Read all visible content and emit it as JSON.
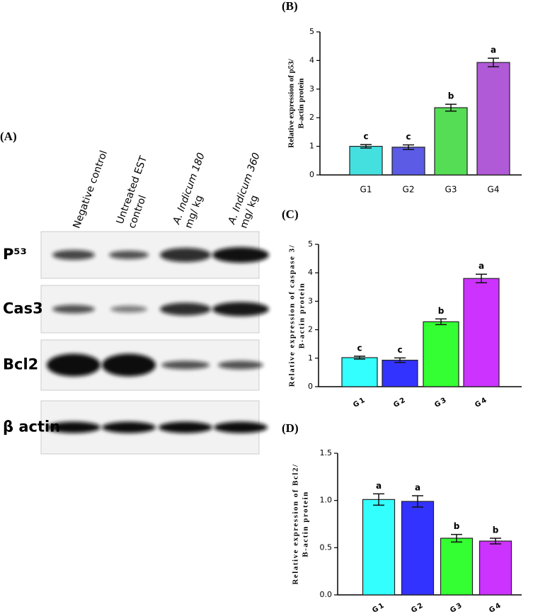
{
  "blot": {
    "panel_label": "(A)",
    "lanes": [
      [
        "Negative control"
      ],
      [
        "Untreated EST",
        "control"
      ],
      [
        "A. Indicum 180",
        "mg/ kg"
      ],
      [
        "A. Indicum 360",
        "mg/ kg"
      ]
    ],
    "rows": [
      "P⁵³",
      "Cas3",
      "Bcl2",
      "β actin"
    ]
  },
  "chart_data": [
    {
      "type": "bar",
      "panel_label": "(B)",
      "ylabel": [
        "Relative expression of p53/",
        "B-actin protein"
      ],
      "categories": [
        "G1",
        "G2",
        "G3",
        "G4"
      ],
      "values": [
        1.0,
        0.97,
        2.35,
        3.93
      ],
      "errors": [
        0.06,
        0.08,
        0.12,
        0.15
      ],
      "annotations": [
        "c",
        "c",
        "b",
        "a"
      ],
      "colors": [
        "#44e0e0",
        "#5b5be6",
        "#55dd55",
        "#b05ad8"
      ],
      "ylim": [
        0,
        5
      ],
      "yticks": [
        0,
        1,
        2,
        3,
        4,
        5
      ]
    },
    {
      "type": "bar",
      "panel_label": "(C)",
      "ylabel": [
        "Relative expression of caspase 3/",
        "B-actin protein"
      ],
      "categories": [
        "G1",
        "G2",
        "G3",
        "G4"
      ],
      "values": [
        1.02,
        0.93,
        2.28,
        3.8
      ],
      "errors": [
        0.05,
        0.08,
        0.1,
        0.15
      ],
      "annotations": [
        "c",
        "c",
        "b",
        "a"
      ],
      "colors": [
        "#33ffff",
        "#3333ff",
        "#33ff33",
        "#cc33ff"
      ],
      "ylim": [
        0,
        5
      ],
      "yticks": [
        0,
        1,
        2,
        3,
        4,
        5
      ]
    },
    {
      "type": "bar",
      "panel_label": "(D)",
      "ylabel": [
        "Relative expression of Bcl2/",
        "B-actin protein"
      ],
      "categories": [
        "G1",
        "G2",
        "G3",
        "G4"
      ],
      "values": [
        1.01,
        0.99,
        0.6,
        0.57
      ],
      "errors": [
        0.06,
        0.06,
        0.04,
        0.03
      ],
      "annotations": [
        "a",
        "a",
        "b",
        "b"
      ],
      "colors": [
        "#33ffff",
        "#3333ff",
        "#33ff33",
        "#cc33ff"
      ],
      "ylim": [
        0,
        1.5
      ],
      "yticks": [
        {
          "value": 0,
          "label": "0.0"
        },
        0.5,
        {
          "value": 1,
          "label": "1.0"
        },
        1.5
      ]
    }
  ]
}
